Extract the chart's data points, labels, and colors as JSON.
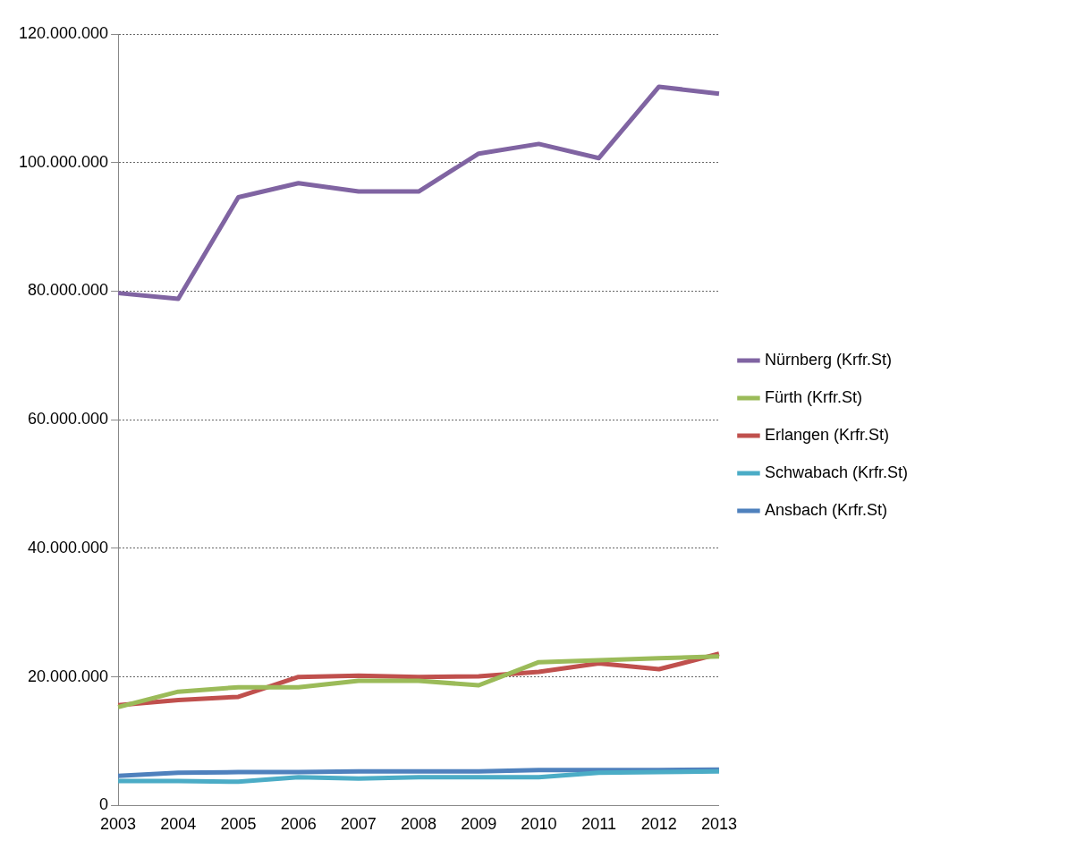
{
  "chart_data": {
    "type": "line",
    "categories": [
      "2003",
      "2004",
      "2005",
      "2006",
      "2007",
      "2008",
      "2009",
      "2010",
      "2011",
      "2012",
      "2013"
    ],
    "series": [
      {
        "name": "Nürnberg (Krfr.St)",
        "color": "#8064a2",
        "values": [
          79700000,
          78800000,
          94600000,
          96800000,
          95500000,
          95500000,
          101400000,
          102900000,
          100700000,
          111800000,
          110700000
        ]
      },
      {
        "name": "Fürth (Krfr.St)",
        "color": "#9bbb59",
        "values": [
          15300000,
          17700000,
          18400000,
          18400000,
          19400000,
          19400000,
          18700000,
          22300000,
          22600000,
          22900000,
          23200000
        ]
      },
      {
        "name": "Erlangen (Krfr.St)",
        "color": "#c0504d",
        "values": [
          15600000,
          16400000,
          16900000,
          20000000,
          20200000,
          20000000,
          20100000,
          20800000,
          22100000,
          21200000,
          23600000
        ]
      },
      {
        "name": "Schwabach (Krfr.St)",
        "color": "#4bacc6",
        "values": [
          3800000,
          3800000,
          3700000,
          4400000,
          4200000,
          4400000,
          4400000,
          4400000,
          5100000,
          5200000,
          5300000
        ]
      },
      {
        "name": "Ansbach (Krfr.St)",
        "color": "#4f81bd",
        "values": [
          4600000,
          5100000,
          5200000,
          5200000,
          5300000,
          5300000,
          5300000,
          5500000,
          5500000,
          5500000,
          5600000
        ]
      }
    ],
    "ylim": [
      0,
      120000000
    ],
    "yticks": [
      {
        "value": 0,
        "label": "0"
      },
      {
        "value": 20000000,
        "label": "20.000.000"
      },
      {
        "value": 40000000,
        "label": "40.000.000"
      },
      {
        "value": 60000000,
        "label": "60.000.000"
      },
      {
        "value": 80000000,
        "label": "80.000.000"
      },
      {
        "value": 100000000,
        "label": "100.000.000"
      },
      {
        "value": 120000000,
        "label": "120.000.000"
      }
    ],
    "grid": "y",
    "legend": "right",
    "marker": "none",
    "line_style": "solid"
  }
}
